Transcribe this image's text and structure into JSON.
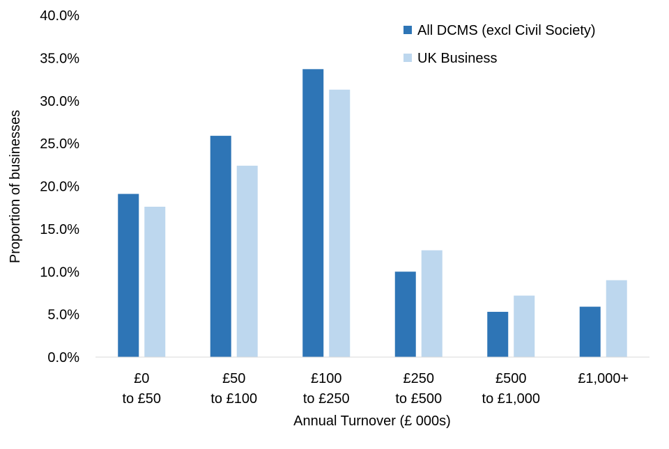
{
  "chart_data": {
    "type": "bar",
    "title": "",
    "xlabel": "Annual Turnover (£ 000s)",
    "ylabel": "Proportion of businesses",
    "ylim": [
      0,
      40
    ],
    "yticks": [
      "0.0%",
      "5.0%",
      "10.0%",
      "15.0%",
      "20.0%",
      "25.0%",
      "30.0%",
      "35.0%",
      "40.0%"
    ],
    "grid": false,
    "legend_position": "top-right",
    "categories": [
      [
        "£0",
        "to £50"
      ],
      [
        "£50",
        "to £100"
      ],
      [
        "£100",
        "to £250"
      ],
      [
        "£250",
        "to £500"
      ],
      [
        "£500",
        "to £1,000"
      ],
      [
        "£1,000+"
      ]
    ],
    "series": [
      {
        "name": "All DCMS (excl Civil Society)",
        "color": "#2E75B6",
        "values": [
          19.1,
          25.9,
          33.7,
          10.0,
          5.3,
          5.9
        ]
      },
      {
        "name": "UK Business",
        "color": "#BDD7EE",
        "values": [
          17.6,
          22.4,
          31.3,
          12.5,
          7.2,
          9.0
        ]
      }
    ]
  }
}
